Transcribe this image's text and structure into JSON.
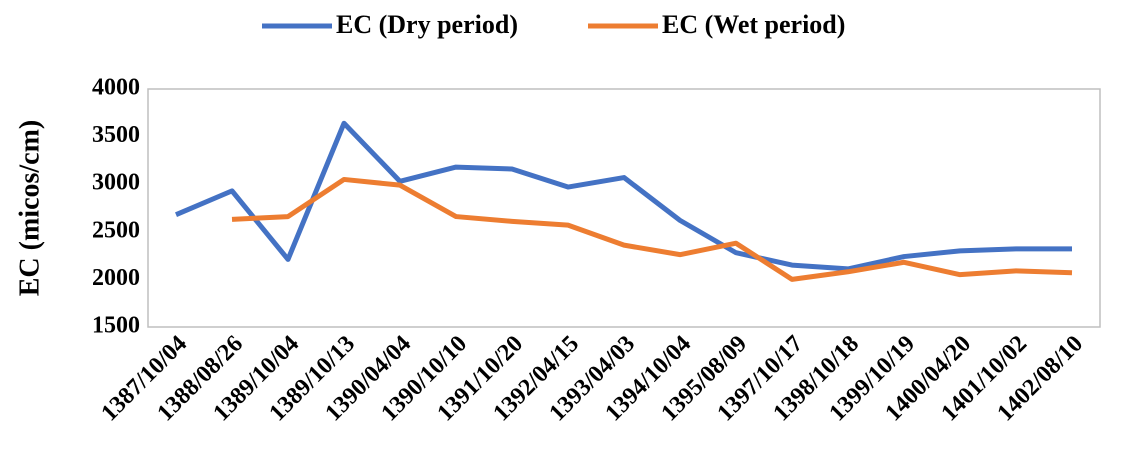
{
  "chart_data": {
    "type": "line",
    "y_label": "EC (micos/cm)",
    "categories": [
      "1387/10/04",
      "1388/08/26",
      "1389/10/04",
      "1389/10/13",
      "1390/04/04",
      "1390/10/10",
      "1391/10/20",
      "1392/04/15",
      "1393/04/03",
      "1394/10/04",
      "1395/08/09",
      "1397/10/17",
      "1398/10/18",
      "1399/10/19",
      "1400/04/20",
      "1401/10/02",
      "1402/08/10"
    ],
    "series": [
      {
        "name": "EC (Dry period)",
        "color": "#4472c4",
        "values": [
          2680,
          2930,
          2210,
          3640,
          3030,
          3180,
          3160,
          2970,
          3070,
          2620,
          2280,
          2150,
          2110,
          2240,
          2300,
          2320,
          2320
        ]
      },
      {
        "name": "EC (Wet period)",
        "color": "#ed7d31",
        "values": [
          null,
          2630,
          2660,
          3050,
          2990,
          2660,
          2610,
          2570,
          2360,
          2260,
          2380,
          2000,
          2080,
          2180,
          2050,
          2090,
          2070
        ]
      }
    ],
    "ylim": [
      1500,
      4000
    ],
    "yticks": [
      1500,
      2000,
      2500,
      3000,
      3500,
      4000
    ],
    "grid": false,
    "legend": "top"
  }
}
